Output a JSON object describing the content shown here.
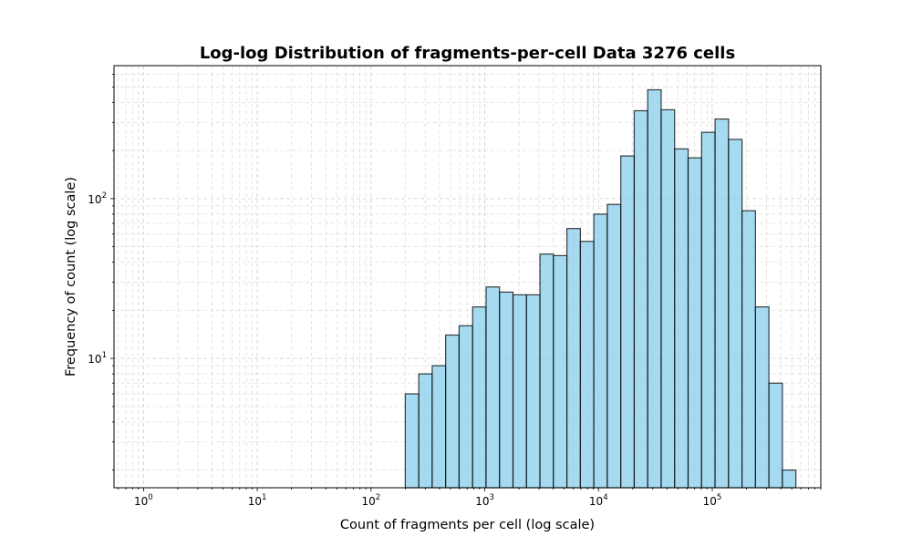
{
  "chart_data": {
    "type": "bar",
    "title": "Log-log Distribution of fragments-per-cell Data 3276 cells",
    "xlabel": "Count of fragments per cell (log scale)",
    "ylabel": "Frequency of count (log scale)",
    "x_scale": "log",
    "y_scale": "log",
    "xlim": [
      0.55,
      900000
    ],
    "ylim": [
      1.55,
      680
    ],
    "x_ticks": [
      {
        "value": 1,
        "base": "10",
        "exp": "0"
      },
      {
        "value": 10,
        "base": "10",
        "exp": "1"
      },
      {
        "value": 100,
        "base": "10",
        "exp": "2"
      },
      {
        "value": 1000,
        "base": "10",
        "exp": "3"
      },
      {
        "value": 10000,
        "base": "10",
        "exp": "4"
      },
      {
        "value": 100000,
        "base": "10",
        "exp": "5"
      }
    ],
    "y_ticks": [
      {
        "value": 10,
        "base": "10",
        "exp": "1"
      },
      {
        "value": 100,
        "base": "10",
        "exp": "2"
      }
    ],
    "grid": true,
    "bin_edges": [
      200,
      263,
      345,
      453,
      595,
      782,
      1027,
      1349,
      1772,
      2327,
      3057,
      4015,
      5273,
      6926,
      9097,
      11949,
      15694,
      20613,
      27075,
      35562,
      46709,
      61351,
      80583,
      105843,
      139022,
      182601,
      239841,
      315024,
      413774,
      543478
    ],
    "values": [
      6,
      8,
      9,
      14,
      16,
      21,
      28,
      26,
      25,
      25,
      45,
      44,
      65,
      54,
      80,
      92,
      185,
      355,
      480,
      360,
      205,
      180,
      260,
      315,
      235,
      84,
      21,
      7,
      2
    ],
    "bar_color": "#87ceeb",
    "edge_color": "#000000"
  }
}
